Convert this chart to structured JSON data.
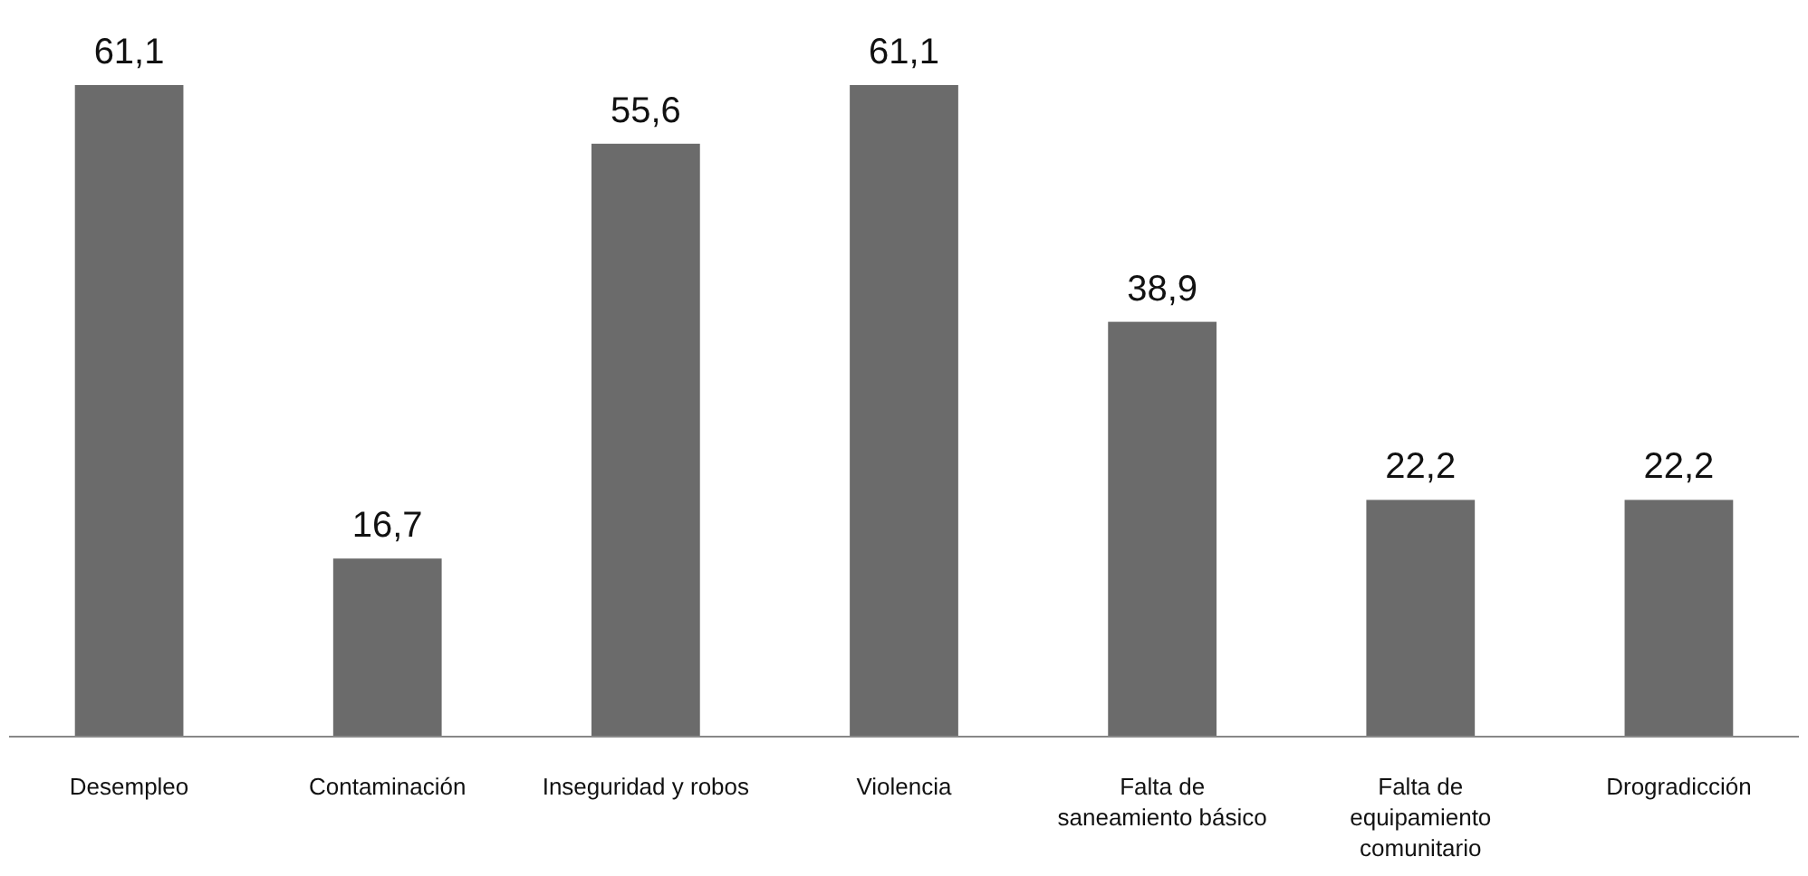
{
  "chart_data": {
    "type": "bar",
    "categories": [
      "Desempleo",
      "Contaminación",
      "Inseguridad y robos",
      "Violencia",
      "Falta de saneamiento básico",
      "Falta de equipamiento comunitario",
      "Drogradicción"
    ],
    "values": [
      61.1,
      16.7,
      55.6,
      61.1,
      38.9,
      22.2,
      22.2
    ],
    "value_labels": [
      "61,1",
      "16,7",
      "55,6",
      "61,1",
      "38,9",
      "22,2",
      "22,2"
    ],
    "color": "#6b6b6b",
    "ylim": [
      0,
      61.1
    ],
    "tick_labels": "x"
  }
}
